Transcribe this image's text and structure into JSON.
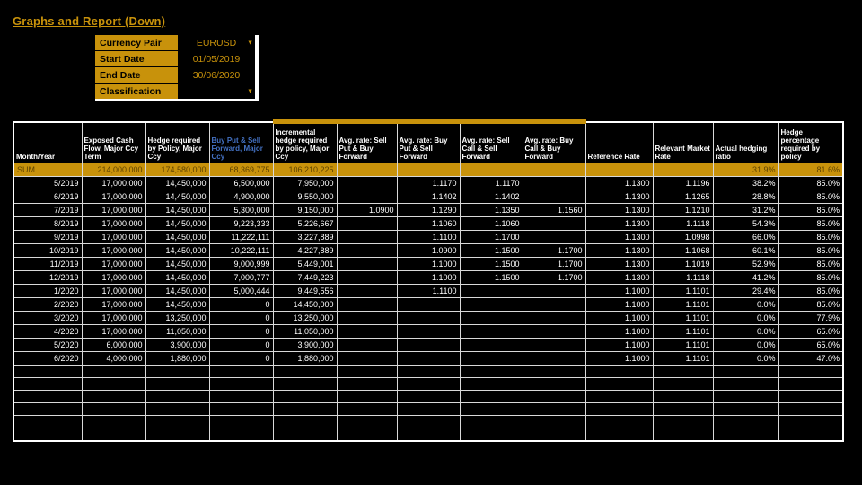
{
  "page": {
    "title": "Graphs and Report (Down)"
  },
  "colors": {
    "gold": "#C8920B",
    "sum_text": "#5E4300",
    "header_blue": "#4472C4",
    "grid_line": "#D9D9D9"
  },
  "form": {
    "fields": [
      {
        "label": "Currency Pair",
        "value": "EURUSD",
        "dropdown": true
      },
      {
        "label": "Start Date",
        "value": "01/05/2019",
        "dropdown": false
      },
      {
        "label": "End Date",
        "value": "30/06/2020",
        "dropdown": false
      },
      {
        "label": "Classification",
        "value": "",
        "dropdown": true
      }
    ]
  },
  "table": {
    "columns": [
      {
        "label": "Month/Year"
      },
      {
        "label": "Exposed Cash Flow, Major Ccy Term"
      },
      {
        "label": "Hedge required by Policy, Major Ccy"
      },
      {
        "label": "Buy Put & Sell Forward, Major Ccy",
        "blue": true
      },
      {
        "label": "Incremental hedge required by policy, Major Ccy",
        "highlight_top": true
      },
      {
        "label": "Avg. rate:  Sell Put & Buy Forward",
        "highlight_top": true
      },
      {
        "label": "Avg. rate: Buy Put & Sell Forward",
        "highlight_top": true
      },
      {
        "label": "Avg. rate: Sell Call & Sell Forward",
        "highlight_top": true
      },
      {
        "label": "Avg. rate: Buy Call & Buy Forward",
        "highlight_top": true
      },
      {
        "label": "Reference Rate"
      },
      {
        "label": "Relevant Market Rate"
      },
      {
        "label": "Actual hedging ratio"
      },
      {
        "label": "Hedge percentage required by policy"
      }
    ],
    "sum_row": [
      "SUM",
      "214,000,000",
      "174,580,000",
      "68,369,775",
      "106,210,225",
      "",
      "",
      "",
      "",
      "",
      "",
      "31.9%",
      "81.6%"
    ],
    "rows": [
      [
        "5/2019",
        "17,000,000",
        "14,450,000",
        "6,500,000",
        "7,950,000",
        "",
        "1.1170",
        "1.1170",
        "",
        "1.1300",
        "1.1196",
        "38.2%",
        "85.0%"
      ],
      [
        "6/2019",
        "17,000,000",
        "14,450,000",
        "4,900,000",
        "9,550,000",
        "",
        "1.1402",
        "1.1402",
        "",
        "1.1300",
        "1.1265",
        "28.8%",
        "85.0%"
      ],
      [
        "7/2019",
        "17,000,000",
        "14,450,000",
        "5,300,000",
        "9,150,000",
        "1.0900",
        "1.1290",
        "1.1350",
        "1.1560",
        "1.1300",
        "1.1210",
        "31.2%",
        "85.0%"
      ],
      [
        "8/2019",
        "17,000,000",
        "14,450,000",
        "9,223,333",
        "5,226,667",
        "",
        "1.1060",
        "1.1060",
        "",
        "1.1300",
        "1.1118",
        "54.3%",
        "85.0%"
      ],
      [
        "9/2019",
        "17,000,000",
        "14,450,000",
        "11,222,111",
        "3,227,889",
        "",
        "1.1100",
        "1.1700",
        "",
        "1.1300",
        "1.0998",
        "66.0%",
        "85.0%"
      ],
      [
        "10/2019",
        "17,000,000",
        "14,450,000",
        "10,222,111",
        "4,227,889",
        "",
        "1.0900",
        "1.1500",
        "1.1700",
        "1.1300",
        "1.1068",
        "60.1%",
        "85.0%"
      ],
      [
        "11/2019",
        "17,000,000",
        "14,450,000",
        "9,000,999",
        "5,449,001",
        "",
        "1.1000",
        "1.1500",
        "1.1700",
        "1.1300",
        "1.1019",
        "52.9%",
        "85.0%"
      ],
      [
        "12/2019",
        "17,000,000",
        "14,450,000",
        "7,000,777",
        "7,449,223",
        "",
        "1.1000",
        "1.1500",
        "1.1700",
        "1.1300",
        "1.1118",
        "41.2%",
        "85.0%"
      ],
      [
        "1/2020",
        "17,000,000",
        "14,450,000",
        "5,000,444",
        "9,449,556",
        "",
        "1.1100",
        "",
        "",
        "1.1000",
        "1.1101",
        "29.4%",
        "85.0%"
      ],
      [
        "2/2020",
        "17,000,000",
        "14,450,000",
        "0",
        "14,450,000",
        "",
        "",
        "",
        "",
        "1.1000",
        "1.1101",
        "0.0%",
        "85.0%"
      ],
      [
        "3/2020",
        "17,000,000",
        "13,250,000",
        "0",
        "13,250,000",
        "",
        "",
        "",
        "",
        "1.1000",
        "1.1101",
        "0.0%",
        "77.9%"
      ],
      [
        "4/2020",
        "17,000,000",
        "11,050,000",
        "0",
        "11,050,000",
        "",
        "",
        "",
        "",
        "1.1000",
        "1.1101",
        "0.0%",
        "65.0%"
      ],
      [
        "5/2020",
        "6,000,000",
        "3,900,000",
        "0",
        "3,900,000",
        "",
        "",
        "",
        "",
        "1.1000",
        "1.1101",
        "0.0%",
        "65.0%"
      ],
      [
        "6/2020",
        "4,000,000",
        "1,880,000",
        "0",
        "1,880,000",
        "",
        "",
        "",
        "",
        "1.1000",
        "1.1101",
        "0.0%",
        "47.0%"
      ]
    ],
    "empty_row_count": 6
  }
}
